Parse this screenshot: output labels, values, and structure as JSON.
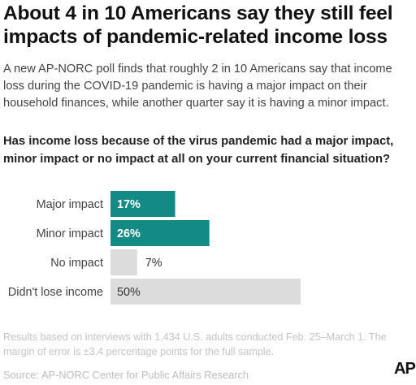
{
  "title": "About 4 in 10 Americans say they still feel impacts of pandemic-related income loss",
  "subtitle": "A new AP-NORC poll finds that roughly 2 in 10 Americans say that income loss during the COVID-19 pandemic is having a major impact on their household finances, while another quarter say it is having a minor impact.",
  "question": "Has income loss because of the virus pandemic had a major impact, minor impact or no impact at all on your current financial situation?",
  "chart_data": {
    "type": "bar",
    "orientation": "horizontal",
    "categories": [
      "Major impact",
      "Minor impact",
      "No impact",
      "Didn't lose income"
    ],
    "values": [
      17,
      26,
      7,
      50
    ],
    "labels": [
      "17%",
      "26%",
      "7%",
      "50%"
    ],
    "xlim": [
      0,
      50
    ],
    "colors": [
      "#138a86",
      "#138a86",
      "#dcdcdc",
      "#dcdcdc"
    ]
  },
  "note": "Results based on interviews with 1,434 U.S. adults conducted Feb. 25–March 1. The margin of error is ±3.4 percentage points for the full sample.",
  "source": "Source: AP-NORC Center for Public Affairs Research",
  "logo_text": "AP"
}
